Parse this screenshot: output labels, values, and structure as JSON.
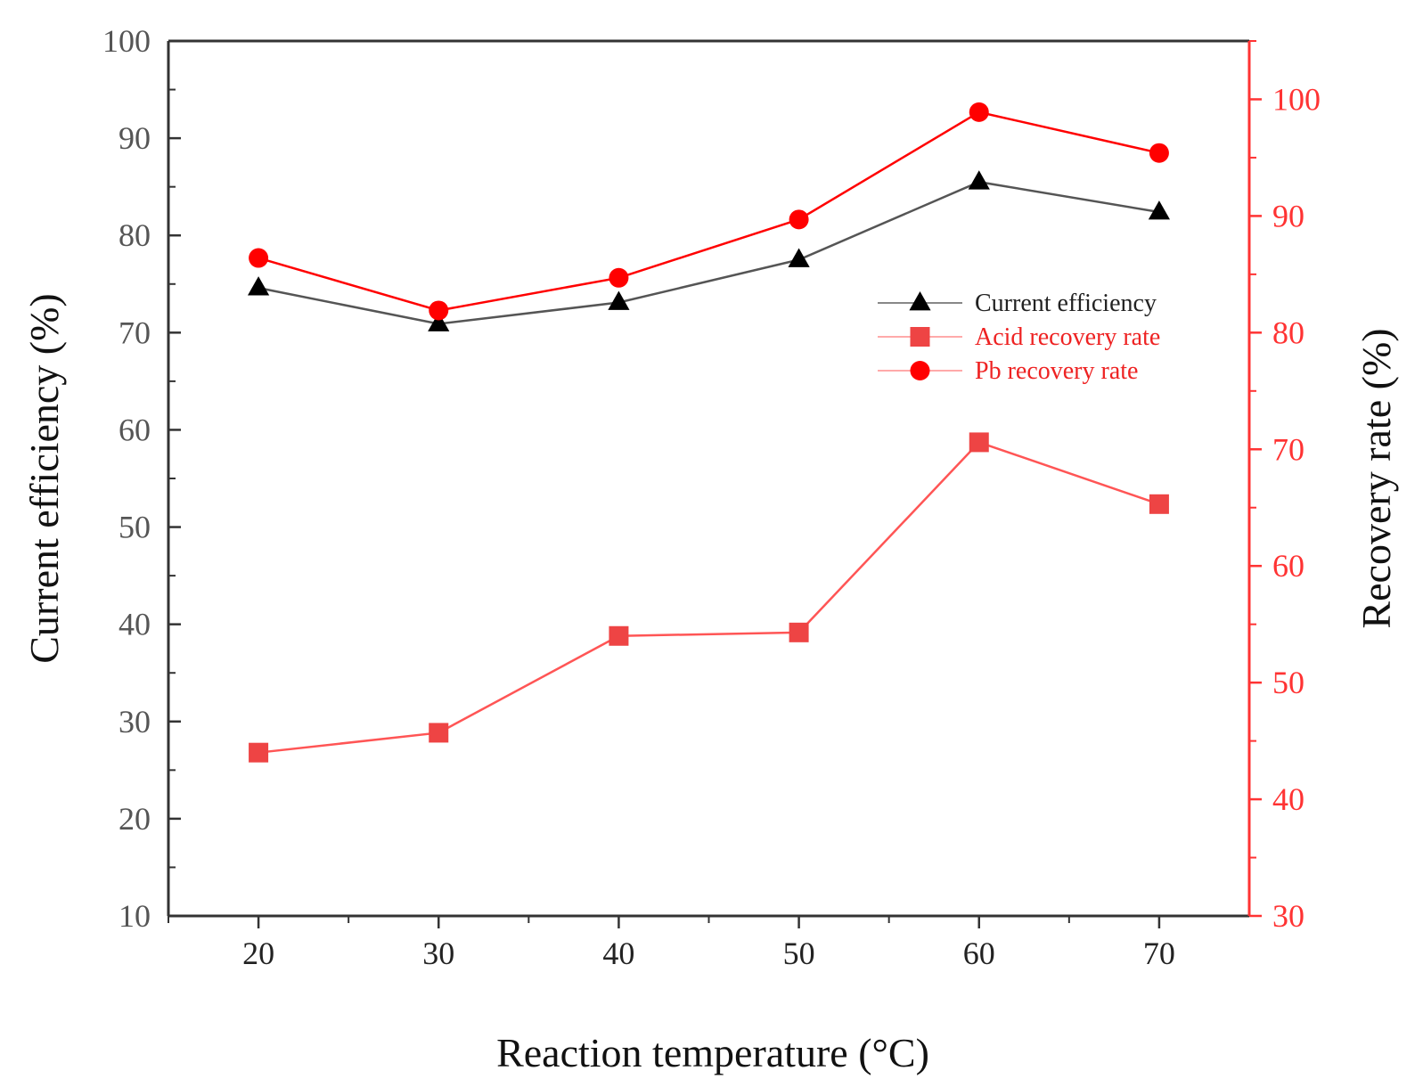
{
  "chart_data": {
    "type": "line",
    "title": "",
    "xlabel": "Reaction temperature (°C)",
    "ylabel_left": "Current efficiency (%)",
    "ylabel_right": "Recovery rate (%)",
    "x": [
      20,
      30,
      40,
      50,
      60,
      70
    ],
    "x_ticks": [
      "20",
      "30",
      "40",
      "50",
      "60",
      "70"
    ],
    "xlim": [
      15,
      75
    ],
    "ylim_left": [
      10,
      100
    ],
    "ylim_right": [
      30,
      105
    ],
    "y_left_ticks": [
      "10",
      "20",
      "30",
      "40",
      "50",
      "60",
      "70",
      "80",
      "90",
      "100"
    ],
    "y_right_ticks": [
      "30",
      "40",
      "50",
      "60",
      "70",
      "80",
      "90",
      "100"
    ],
    "legend_position": "center-right",
    "series": [
      {
        "name": "Current efficiency",
        "axis": "left",
        "marker": "triangle",
        "color": "#000000",
        "line_color": "#555555",
        "values": [
          74.6,
          70.9,
          73.1,
          77.5,
          85.5,
          82.4
        ]
      },
      {
        "name": "Acid recovery rate",
        "axis": "right",
        "marker": "square",
        "color": "#ee4444",
        "line_color": "#ff5555",
        "values": [
          44.0,
          45.7,
          54.0,
          54.3,
          70.6,
          65.3
        ]
      },
      {
        "name": "Pb recovery rate",
        "axis": "right",
        "marker": "circle",
        "color": "#ff0000",
        "line_color": "#ff0000",
        "values": [
          86.4,
          81.9,
          84.7,
          89.7,
          98.9,
          95.4
        ]
      }
    ],
    "colors": {
      "left_axis": "#333333",
      "right_axis": "#ff3333",
      "left_labels": "#555555"
    }
  }
}
